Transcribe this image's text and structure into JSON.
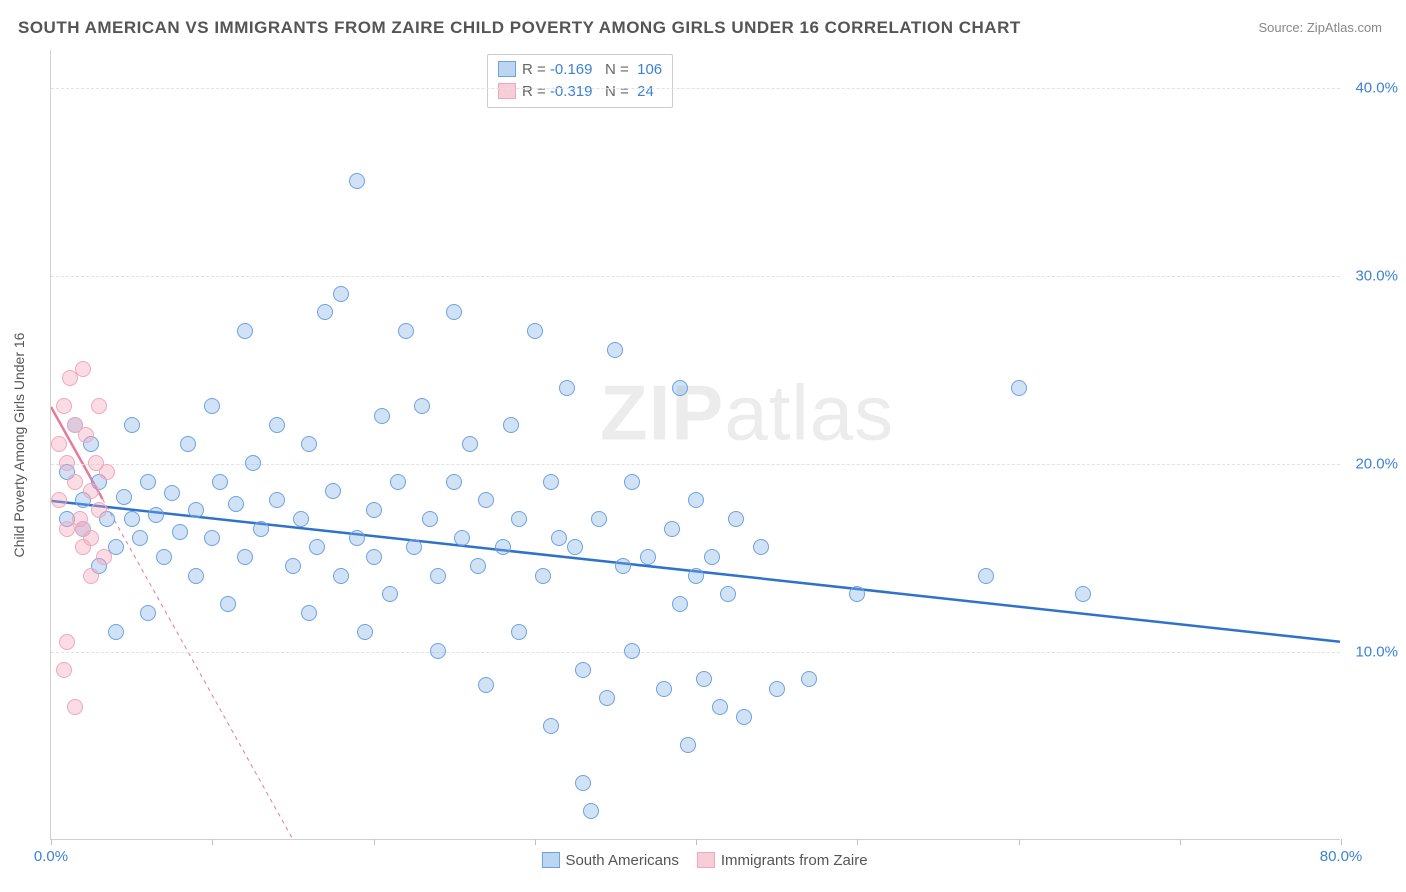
{
  "title": "SOUTH AMERICAN VS IMMIGRANTS FROM ZAIRE CHILD POVERTY AMONG GIRLS UNDER 16 CORRELATION CHART",
  "source_label": "Source: ZipAtlas.com",
  "y_axis_label": "Child Poverty Among Girls Under 16",
  "watermark_bold": "ZIP",
  "watermark_light": "atlas",
  "chart": {
    "type": "scatter",
    "background_color": "#ffffff",
    "grid_color": "#e2e2e2",
    "axis_color": "#d0d0d0",
    "tick_label_color": "#3b82d6",
    "axis_label_color": "#555555",
    "xlim": [
      0,
      80
    ],
    "ylim": [
      0,
      42
    ],
    "x_ticks": [
      0,
      10,
      20,
      30,
      40,
      50,
      60,
      70,
      80
    ],
    "x_tick_labels": {
      "0": "0.0%",
      "80": "80.0%"
    },
    "y_ticks": [
      10,
      20,
      30,
      40
    ],
    "y_tick_labels": {
      "10": "10.0%",
      "20": "20.0%",
      "30": "30.0%",
      "40": "40.0%"
    },
    "marker_radius": 8,
    "marker_border_width": 1.2,
    "line_width": 2.5,
    "series": [
      {
        "name": "South Americans",
        "color_fill": "rgba(122,171,230,0.35)",
        "color_stroke": "#6ba3e0",
        "swatch_fill": "#bcd5f1",
        "swatch_stroke": "#6ba3e0",
        "r": "-0.169",
        "n": "106",
        "trend": {
          "x1": 0,
          "y1": 18.0,
          "x2": 80,
          "y2": 10.5,
          "color": "#2f72c9",
          "dash": "none"
        },
        "points": [
          [
            1,
            19.5
          ],
          [
            1,
            17
          ],
          [
            1.5,
            22
          ],
          [
            2,
            18
          ],
          [
            2,
            16.5
          ],
          [
            2.5,
            21
          ],
          [
            3,
            19
          ],
          [
            3,
            14.5
          ],
          [
            3.5,
            17
          ],
          [
            4,
            11
          ],
          [
            4,
            15.5
          ],
          [
            4.5,
            18.2
          ],
          [
            5,
            17
          ],
          [
            5,
            22
          ],
          [
            5.5,
            16
          ],
          [
            6,
            19
          ],
          [
            6,
            12
          ],
          [
            6.5,
            17.2
          ],
          [
            7,
            15
          ],
          [
            7.5,
            18.4
          ],
          [
            8,
            16.3
          ],
          [
            8.5,
            21
          ],
          [
            9,
            14
          ],
          [
            9,
            17.5
          ],
          [
            10,
            23
          ],
          [
            10,
            16
          ],
          [
            10.5,
            19
          ],
          [
            11,
            12.5
          ],
          [
            11.5,
            17.8
          ],
          [
            12,
            27
          ],
          [
            12,
            15
          ],
          [
            12.5,
            20
          ],
          [
            13,
            16.5
          ],
          [
            14,
            18
          ],
          [
            14,
            22
          ],
          [
            15,
            14.5
          ],
          [
            15.5,
            17
          ],
          [
            16,
            21
          ],
          [
            16,
            12
          ],
          [
            16.5,
            15.5
          ],
          [
            17,
            28
          ],
          [
            17.5,
            18.5
          ],
          [
            18,
            14
          ],
          [
            18,
            29
          ],
          [
            19,
            16
          ],
          [
            19,
            35
          ],
          [
            19.5,
            11
          ],
          [
            20,
            17.5
          ],
          [
            20,
            15
          ],
          [
            20.5,
            22.5
          ],
          [
            21,
            13
          ],
          [
            21.5,
            19
          ],
          [
            22,
            27
          ],
          [
            22.5,
            15.5
          ],
          [
            23,
            23
          ],
          [
            23.5,
            17
          ],
          [
            24,
            10
          ],
          [
            24,
            14
          ],
          [
            25,
            28
          ],
          [
            25,
            19
          ],
          [
            25.5,
            16
          ],
          [
            26,
            21
          ],
          [
            26.5,
            14.5
          ],
          [
            27,
            18
          ],
          [
            27,
            8.2
          ],
          [
            28,
            15.5
          ],
          [
            28.5,
            22
          ],
          [
            29,
            17
          ],
          [
            29,
            11
          ],
          [
            30,
            27
          ],
          [
            30.5,
            14
          ],
          [
            31,
            19
          ],
          [
            31,
            6
          ],
          [
            31.5,
            16
          ],
          [
            32,
            24
          ],
          [
            32.5,
            15.5
          ],
          [
            33,
            9
          ],
          [
            33,
            3
          ],
          [
            33.5,
            1.5
          ],
          [
            34,
            17
          ],
          [
            34.5,
            7.5
          ],
          [
            35,
            26
          ],
          [
            35.5,
            14.5
          ],
          [
            36,
            19
          ],
          [
            36,
            10
          ],
          [
            37,
            15
          ],
          [
            38,
            8
          ],
          [
            38.5,
            16.5
          ],
          [
            39,
            24
          ],
          [
            39,
            12.5
          ],
          [
            39.5,
            5
          ],
          [
            40,
            14
          ],
          [
            40,
            18
          ],
          [
            40.5,
            8.5
          ],
          [
            41,
            15
          ],
          [
            41.5,
            7
          ],
          [
            42,
            13
          ],
          [
            42.5,
            17
          ],
          [
            43,
            6.5
          ],
          [
            44,
            15.5
          ],
          [
            45,
            8
          ],
          [
            47,
            8.5
          ],
          [
            50,
            13
          ],
          [
            58,
            14
          ],
          [
            60,
            24
          ],
          [
            64,
            13
          ]
        ]
      },
      {
        "name": "Immigrants from Zaire",
        "color_fill": "rgba(244,164,184,0.38)",
        "color_stroke": "#efa7bb",
        "swatch_fill": "#f7cdd8",
        "swatch_stroke": "#efa7bb",
        "r": "-0.319",
        "n": "24",
        "trend": {
          "x1": 0,
          "y1": 23,
          "x2": 15,
          "y2": 0,
          "color": "#e67a9a",
          "dash": "4,4",
          "solid_until_x": 3.2
        },
        "points": [
          [
            0.5,
            21
          ],
          [
            0.5,
            18
          ],
          [
            0.8,
            23
          ],
          [
            1,
            20
          ],
          [
            1,
            16.5
          ],
          [
            1.2,
            24.5
          ],
          [
            1.5,
            19
          ],
          [
            1.5,
            22
          ],
          [
            1.8,
            17
          ],
          [
            2,
            25
          ],
          [
            2,
            15.5
          ],
          [
            2.2,
            21.5
          ],
          [
            2.5,
            18.5
          ],
          [
            2.5,
            16
          ],
          [
            2.8,
            20
          ],
          [
            3,
            17.5
          ],
          [
            3,
            23
          ],
          [
            3.3,
            15
          ],
          [
            3.5,
            19.5
          ],
          [
            1,
            10.5
          ],
          [
            0.8,
            9
          ],
          [
            1.5,
            7
          ],
          [
            2,
            16.5
          ],
          [
            2.5,
            14
          ]
        ]
      }
    ]
  },
  "legend_top_labels": {
    "r": "R =",
    "n": "N ="
  },
  "legend_bottom": [
    "South Americans",
    "Immigrants from Zaire"
  ]
}
